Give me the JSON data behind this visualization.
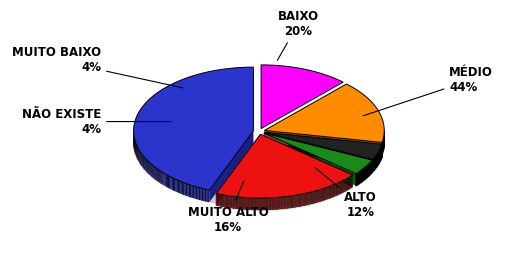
{
  "labels": [
    "MÉDIO",
    "BAIXO",
    "MUITO BAIXO",
    "NÃO EXISTE",
    "MUITO ALTO",
    "ALTO"
  ],
  "values": [
    44,
    20,
    4,
    4,
    16,
    12
  ],
  "colors_top": [
    "#2B35CC",
    "#EE1111",
    "#1A8A1A",
    "#222222",
    "#FF8C00",
    "#FF00FF"
  ],
  "colors_side": [
    "#1A1F88",
    "#991111",
    "#0A5A0A",
    "#111111",
    "#8B4513",
    "#880088"
  ],
  "startangle": 90,
  "background_color": "#FFFFFF",
  "fontsize": 8.5
}
